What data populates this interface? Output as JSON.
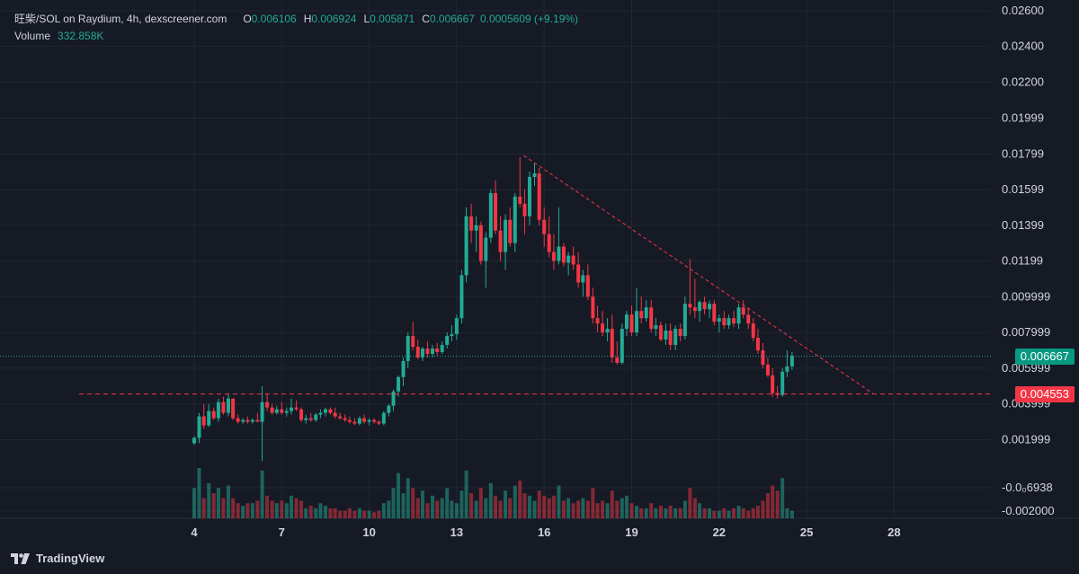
{
  "legend": {
    "symbol": "旺柴/SOL on Raydium, 4h, dexscreener.com",
    "open_label": "O",
    "open": "0.006106",
    "high_label": "H",
    "high": "0.006924",
    "low_label": "L",
    "low": "0.005871",
    "close_label": "C",
    "close": "0.006667",
    "change": "0.0005609 (+9.19%)",
    "volume_label": "Volume",
    "volume": "332.858K"
  },
  "price_tags": {
    "last_price": "0.006667",
    "support_price": "0.004553"
  },
  "brand": {
    "name": "TradingView"
  },
  "colors": {
    "background": "#161a25",
    "up": "#22ab94",
    "down": "#f23645",
    "grid": "#232733",
    "text": "#d1d4dc",
    "trendline": "#f23645"
  },
  "chart_data": {
    "type": "candlestick",
    "interval": "4h",
    "x_ticks": [
      "4",
      "7",
      "10",
      "13",
      "16",
      "19",
      "22",
      "25",
      "28"
    ],
    "y_ticks": [
      "0.02600",
      "0.02400",
      "0.02200",
      "0.01999",
      "0.01799",
      "0.01599",
      "0.01399",
      "0.01199",
      "0.009999",
      "0.007999",
      "0.005999",
      "0.003999",
      "0.001999",
      "-0.0₀6938",
      "-0.002000"
    ],
    "ylim": [
      -0.0024,
      0.0266
    ],
    "last_close": 0.006667,
    "support_level": 0.004553,
    "trendline": {
      "start": [
        15.3,
        0.0179
      ],
      "end": [
        27.3,
        0.00455
      ]
    },
    "candles": [
      [
        4.0,
        0.0018,
        0.0022,
        0.0017,
        0.0021
      ],
      [
        4.17,
        0.0021,
        0.0035,
        0.0018,
        0.0033
      ],
      [
        4.33,
        0.0033,
        0.004,
        0.0026,
        0.0028
      ],
      [
        4.5,
        0.0028,
        0.004,
        0.0027,
        0.0036
      ],
      [
        4.67,
        0.0036,
        0.0038,
        0.0031,
        0.0032
      ],
      [
        4.83,
        0.0032,
        0.0043,
        0.003,
        0.0041
      ],
      [
        5.0,
        0.0041,
        0.0044,
        0.0034,
        0.0035
      ],
      [
        5.17,
        0.0035,
        0.0046,
        0.0033,
        0.0043
      ],
      [
        5.33,
        0.0043,
        0.0043,
        0.0031,
        0.0032
      ],
      [
        5.5,
        0.0032,
        0.0034,
        0.0029,
        0.003
      ],
      [
        5.67,
        0.003,
        0.0032,
        0.0029,
        0.0031
      ],
      [
        5.83,
        0.0031,
        0.0033,
        0.0029,
        0.003
      ],
      [
        6.0,
        0.003,
        0.0032,
        0.0029,
        0.0031
      ],
      [
        6.17,
        0.0031,
        0.0035,
        0.003,
        0.003
      ],
      [
        6.33,
        0.003,
        0.005,
        0.0008,
        0.0041
      ],
      [
        6.5,
        0.0041,
        0.0046,
        0.0036,
        0.0038
      ],
      [
        6.67,
        0.0038,
        0.004,
        0.0034,
        0.0035
      ],
      [
        6.83,
        0.0035,
        0.0039,
        0.0034,
        0.0037
      ],
      [
        7.0,
        0.0037,
        0.0041,
        0.0034,
        0.0035
      ],
      [
        7.17,
        0.0035,
        0.0038,
        0.0033,
        0.0036
      ],
      [
        7.33,
        0.0036,
        0.0043,
        0.0034,
        0.0038
      ],
      [
        7.5,
        0.0038,
        0.0042,
        0.0036,
        0.0037
      ],
      [
        7.67,
        0.0037,
        0.0038,
        0.003,
        0.0031
      ],
      [
        7.83,
        0.0031,
        0.0034,
        0.0029,
        0.0032
      ],
      [
        8.0,
        0.0032,
        0.0035,
        0.003,
        0.0031
      ],
      [
        8.17,
        0.0031,
        0.0035,
        0.003,
        0.0034
      ],
      [
        8.33,
        0.0034,
        0.0037,
        0.0032,
        0.0035
      ],
      [
        8.5,
        0.0035,
        0.0038,
        0.0033,
        0.0037
      ],
      [
        8.67,
        0.0037,
        0.0038,
        0.0034,
        0.0035
      ],
      [
        8.83,
        0.0035,
        0.0038,
        0.0032,
        0.0033
      ],
      [
        9.0,
        0.0033,
        0.0035,
        0.0031,
        0.0032
      ],
      [
        9.17,
        0.0032,
        0.0034,
        0.003,
        0.0031
      ],
      [
        9.33,
        0.0031,
        0.0033,
        0.0029,
        0.003
      ],
      [
        9.5,
        0.003,
        0.0032,
        0.0028,
        0.0029
      ],
      [
        9.67,
        0.0029,
        0.0033,
        0.0028,
        0.0032
      ],
      [
        9.83,
        0.0032,
        0.0034,
        0.0029,
        0.003
      ],
      [
        10.0,
        0.003,
        0.0032,
        0.0028,
        0.0031
      ],
      [
        10.17,
        0.0031,
        0.0032,
        0.0029,
        0.003
      ],
      [
        10.33,
        0.003,
        0.0031,
        0.0028,
        0.0029
      ],
      [
        10.5,
        0.0029,
        0.0036,
        0.0028,
        0.0035
      ],
      [
        10.67,
        0.0035,
        0.004,
        0.0033,
        0.0039
      ],
      [
        10.83,
        0.0039,
        0.0048,
        0.0036,
        0.0047
      ],
      [
        11.0,
        0.0047,
        0.0056,
        0.0044,
        0.0055
      ],
      [
        11.17,
        0.0055,
        0.0066,
        0.005,
        0.0064
      ],
      [
        11.33,
        0.0064,
        0.008,
        0.006,
        0.0078
      ],
      [
        11.5,
        0.0078,
        0.0086,
        0.007,
        0.0072
      ],
      [
        11.67,
        0.0072,
        0.0076,
        0.0065,
        0.0066
      ],
      [
        11.83,
        0.0066,
        0.0072,
        0.0064,
        0.0071
      ],
      [
        12.0,
        0.0071,
        0.0075,
        0.0066,
        0.0068
      ],
      [
        12.17,
        0.0068,
        0.0073,
        0.0066,
        0.0071
      ],
      [
        12.33,
        0.0071,
        0.0074,
        0.0067,
        0.0069
      ],
      [
        12.5,
        0.0069,
        0.0075,
        0.0068,
        0.0073
      ],
      [
        12.67,
        0.0073,
        0.008,
        0.0071,
        0.0078
      ],
      [
        12.83,
        0.0078,
        0.0084,
        0.0075,
        0.0079
      ],
      [
        13.0,
        0.0079,
        0.009,
        0.0076,
        0.0088
      ],
      [
        13.17,
        0.0088,
        0.0115,
        0.0085,
        0.0112
      ],
      [
        13.33,
        0.0112,
        0.015,
        0.0108,
        0.0145
      ],
      [
        13.5,
        0.0145,
        0.0152,
        0.013,
        0.0137
      ],
      [
        13.67,
        0.0137,
        0.0145,
        0.0125,
        0.014
      ],
      [
        13.83,
        0.014,
        0.0142,
        0.0118,
        0.012
      ],
      [
        14.0,
        0.012,
        0.0136,
        0.0105,
        0.0133
      ],
      [
        14.17,
        0.0133,
        0.016,
        0.013,
        0.0158
      ],
      [
        14.33,
        0.0158,
        0.0165,
        0.0135,
        0.0137
      ],
      [
        14.5,
        0.0137,
        0.0145,
        0.012,
        0.0125
      ],
      [
        14.67,
        0.0125,
        0.0146,
        0.0115,
        0.0143
      ],
      [
        14.83,
        0.0143,
        0.015,
        0.0128,
        0.013
      ],
      [
        15.0,
        0.013,
        0.0158,
        0.0125,
        0.0156
      ],
      [
        15.17,
        0.0156,
        0.0178,
        0.015,
        0.0152
      ],
      [
        15.33,
        0.0152,
        0.016,
        0.0135,
        0.0145
      ],
      [
        15.5,
        0.0145,
        0.017,
        0.014,
        0.0167
      ],
      [
        15.67,
        0.0167,
        0.0175,
        0.0162,
        0.0169
      ],
      [
        15.83,
        0.0169,
        0.0172,
        0.014,
        0.0143
      ],
      [
        16.0,
        0.0143,
        0.015,
        0.0128,
        0.0135
      ],
      [
        16.17,
        0.0135,
        0.0145,
        0.0122,
        0.0125
      ],
      [
        16.33,
        0.0125,
        0.0135,
        0.0115,
        0.012
      ],
      [
        16.5,
        0.012,
        0.015,
        0.0118,
        0.0128
      ],
      [
        16.67,
        0.0128,
        0.013,
        0.0117,
        0.0119
      ],
      [
        16.83,
        0.0119,
        0.0125,
        0.0112,
        0.0123
      ],
      [
        17.0,
        0.0123,
        0.0128,
        0.0115,
        0.0118
      ],
      [
        17.17,
        0.0118,
        0.0125,
        0.0105,
        0.0108
      ],
      [
        17.33,
        0.0108,
        0.0115,
        0.01,
        0.0112
      ],
      [
        17.5,
        0.0112,
        0.0118,
        0.0098,
        0.01
      ],
      [
        17.67,
        0.01,
        0.0105,
        0.0085,
        0.0088
      ],
      [
        17.83,
        0.0088,
        0.0095,
        0.008,
        0.0085
      ],
      [
        18.0,
        0.0085,
        0.0092,
        0.0078,
        0.008
      ],
      [
        18.17,
        0.008,
        0.0088,
        0.0075,
        0.0082
      ],
      [
        18.33,
        0.0082,
        0.009,
        0.0063,
        0.0066
      ],
      [
        18.5,
        0.0066,
        0.0075,
        0.0062,
        0.0063
      ],
      [
        18.67,
        0.0063,
        0.0085,
        0.0062,
        0.0082
      ],
      [
        18.83,
        0.0082,
        0.0092,
        0.0078,
        0.009
      ],
      [
        19.0,
        0.009,
        0.0095,
        0.0078,
        0.008
      ],
      [
        19.17,
        0.008,
        0.0105,
        0.0078,
        0.0092
      ],
      [
        19.33,
        0.0092,
        0.01,
        0.0085,
        0.0088
      ],
      [
        19.5,
        0.0088,
        0.0098,
        0.0086,
        0.0094
      ],
      [
        19.67,
        0.0094,
        0.0098,
        0.008,
        0.0082
      ],
      [
        19.83,
        0.0082,
        0.0088,
        0.0078,
        0.0084
      ],
      [
        20.0,
        0.0084,
        0.0086,
        0.0075,
        0.0076
      ],
      [
        20.17,
        0.0076,
        0.0085,
        0.0073,
        0.0081
      ],
      [
        20.33,
        0.0081,
        0.0085,
        0.007,
        0.0073
      ],
      [
        20.5,
        0.0073,
        0.0084,
        0.007,
        0.0082
      ],
      [
        20.67,
        0.0082,
        0.0085,
        0.0075,
        0.0078
      ],
      [
        20.83,
        0.0078,
        0.01,
        0.0076,
        0.0096
      ],
      [
        21.0,
        0.0096,
        0.0121,
        0.009,
        0.0094
      ],
      [
        21.17,
        0.0094,
        0.011,
        0.0088,
        0.0092
      ],
      [
        21.33,
        0.0092,
        0.0098,
        0.0086,
        0.0097
      ],
      [
        21.5,
        0.0097,
        0.01,
        0.009,
        0.0093
      ],
      [
        21.67,
        0.0093,
        0.0098,
        0.0088,
        0.0096
      ],
      [
        21.83,
        0.0096,
        0.0098,
        0.0084,
        0.0086
      ],
      [
        22.0,
        0.0086,
        0.009,
        0.008,
        0.0088
      ],
      [
        22.17,
        0.0088,
        0.0092,
        0.0082,
        0.0084
      ],
      [
        22.33,
        0.0084,
        0.009,
        0.0082,
        0.0088
      ],
      [
        22.5,
        0.0088,
        0.0092,
        0.0083,
        0.0085
      ],
      [
        22.67,
        0.0085,
        0.0096,
        0.0082,
        0.0094
      ],
      [
        22.83,
        0.0094,
        0.0098,
        0.0088,
        0.009
      ],
      [
        23.0,
        0.009,
        0.0094,
        0.0082,
        0.0085
      ],
      [
        23.17,
        0.0085,
        0.0088,
        0.0075,
        0.0077
      ],
      [
        23.33,
        0.0077,
        0.0082,
        0.0068,
        0.007
      ],
      [
        23.5,
        0.007,
        0.0074,
        0.006,
        0.0062
      ],
      [
        23.67,
        0.0062,
        0.0066,
        0.0055,
        0.0056
      ],
      [
        23.83,
        0.0056,
        0.006,
        0.0044,
        0.0046
      ],
      [
        24.0,
        0.0046,
        0.005,
        0.0043,
        0.0045
      ],
      [
        24.17,
        0.0045,
        0.006,
        0.0044,
        0.0058
      ],
      [
        24.33,
        0.0058,
        0.007,
        0.0055,
        0.0061
      ],
      [
        24.5,
        0.0061,
        0.0069,
        0.0059,
        0.0067
      ]
    ],
    "volumes": [
      [
        4.0,
        0.6
      ],
      [
        4.17,
        1.0
      ],
      [
        4.33,
        0.4
      ],
      [
        4.5,
        0.7
      ],
      [
        4.67,
        0.5
      ],
      [
        4.83,
        0.6
      ],
      [
        5.0,
        0.4
      ],
      [
        5.17,
        0.65
      ],
      [
        5.33,
        0.4
      ],
      [
        5.5,
        0.3
      ],
      [
        5.67,
        0.25
      ],
      [
        5.83,
        0.3
      ],
      [
        6.0,
        0.3
      ],
      [
        6.17,
        0.35
      ],
      [
        6.33,
        0.95
      ],
      [
        6.5,
        0.45
      ],
      [
        6.67,
        0.35
      ],
      [
        6.83,
        0.3
      ],
      [
        7.0,
        0.35
      ],
      [
        7.17,
        0.3
      ],
      [
        7.33,
        0.45
      ],
      [
        7.5,
        0.4
      ],
      [
        7.67,
        0.35
      ],
      [
        7.83,
        0.2
      ],
      [
        8.0,
        0.25
      ],
      [
        8.17,
        0.2
      ],
      [
        8.33,
        0.3
      ],
      [
        8.5,
        0.25
      ],
      [
        8.67,
        0.2
      ],
      [
        8.83,
        0.2
      ],
      [
        9.0,
        0.15
      ],
      [
        9.17,
        0.15
      ],
      [
        9.33,
        0.2
      ],
      [
        9.5,
        0.15
      ],
      [
        9.67,
        0.2
      ],
      [
        9.83,
        0.15
      ],
      [
        10.0,
        0.15
      ],
      [
        10.17,
        0.12
      ],
      [
        10.33,
        0.15
      ],
      [
        10.5,
        0.3
      ],
      [
        10.67,
        0.35
      ],
      [
        10.83,
        0.6
      ],
      [
        11.0,
        0.9
      ],
      [
        11.17,
        0.5
      ],
      [
        11.33,
        0.8
      ],
      [
        11.5,
        0.6
      ],
      [
        11.67,
        0.4
      ],
      [
        11.83,
        0.55
      ],
      [
        12.0,
        0.3
      ],
      [
        12.17,
        0.45
      ],
      [
        12.33,
        0.35
      ],
      [
        12.5,
        0.4
      ],
      [
        12.67,
        0.6
      ],
      [
        12.83,
        0.35
      ],
      [
        13.0,
        0.3
      ],
      [
        13.17,
        0.55
      ],
      [
        13.33,
        0.95
      ],
      [
        13.5,
        0.5
      ],
      [
        13.67,
        0.35
      ],
      [
        13.83,
        0.6
      ],
      [
        14.0,
        0.4
      ],
      [
        14.17,
        0.7
      ],
      [
        14.33,
        0.45
      ],
      [
        14.5,
        0.35
      ],
      [
        14.67,
        0.55
      ],
      [
        14.83,
        0.4
      ],
      [
        15.0,
        0.65
      ],
      [
        15.17,
        0.75
      ],
      [
        15.33,
        0.5
      ],
      [
        15.5,
        0.45
      ],
      [
        15.67,
        0.35
      ],
      [
        15.83,
        0.55
      ],
      [
        16.0,
        0.45
      ],
      [
        16.17,
        0.4
      ],
      [
        16.33,
        0.45
      ],
      [
        16.5,
        0.65
      ],
      [
        16.67,
        0.35
      ],
      [
        16.83,
        0.4
      ],
      [
        17.0,
        0.3
      ],
      [
        17.17,
        0.35
      ],
      [
        17.33,
        0.4
      ],
      [
        17.5,
        0.35
      ],
      [
        17.67,
        0.6
      ],
      [
        17.83,
        0.3
      ],
      [
        18.0,
        0.35
      ],
      [
        18.17,
        0.3
      ],
      [
        18.33,
        0.55
      ],
      [
        18.5,
        0.35
      ],
      [
        18.67,
        0.4
      ],
      [
        18.83,
        0.45
      ],
      [
        19.0,
        0.3
      ],
      [
        19.17,
        0.25
      ],
      [
        19.33,
        0.2
      ],
      [
        19.5,
        0.2
      ],
      [
        19.67,
        0.3
      ],
      [
        19.83,
        0.2
      ],
      [
        20.0,
        0.25
      ],
      [
        20.17,
        0.2
      ],
      [
        20.33,
        0.25
      ],
      [
        20.5,
        0.2
      ],
      [
        20.67,
        0.2
      ],
      [
        20.83,
        0.35
      ],
      [
        21.0,
        0.6
      ],
      [
        21.17,
        0.4
      ],
      [
        21.33,
        0.3
      ],
      [
        21.5,
        0.2
      ],
      [
        21.67,
        0.2
      ],
      [
        21.83,
        0.15
      ],
      [
        22.0,
        0.15
      ],
      [
        22.17,
        0.2
      ],
      [
        22.33,
        0.15
      ],
      [
        22.5,
        0.2
      ],
      [
        22.67,
        0.25
      ],
      [
        22.83,
        0.2
      ],
      [
        23.0,
        0.15
      ],
      [
        23.17,
        0.2
      ],
      [
        23.33,
        0.25
      ],
      [
        23.5,
        0.35
      ],
      [
        23.67,
        0.5
      ],
      [
        23.83,
        0.65
      ],
      [
        24.0,
        0.55
      ],
      [
        24.17,
        0.8
      ],
      [
        24.33,
        0.2
      ],
      [
        24.5,
        0.15
      ]
    ]
  }
}
